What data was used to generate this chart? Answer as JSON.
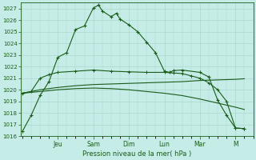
{
  "xlabel": "Pression niveau de la mer( hPa )",
  "bg_color": "#c5ece6",
  "grid_color": "#aad8cc",
  "line_color": "#1a5c1a",
  "ylim": [
    1016,
    1027.5
  ],
  "yticks": [
    1016,
    1017,
    1018,
    1019,
    1020,
    1021,
    1022,
    1023,
    1024,
    1025,
    1026,
    1027
  ],
  "day_labels": [
    "Jeu",
    "Sam",
    "Dim",
    "Lun",
    "Mar",
    "M"
  ],
  "day_positions": [
    2,
    4,
    6,
    8,
    10,
    12
  ],
  "xlim": [
    -0.1,
    13.0
  ],
  "line_main": {
    "x": [
      0,
      0.5,
      1,
      1.5,
      2,
      2.5,
      3,
      3.5,
      4,
      4.3,
      4.5,
      5,
      5.3,
      5.5,
      6,
      6.5,
      7,
      7.5,
      8,
      8.3,
      8.5,
      9,
      10,
      10.5,
      11,
      11.5,
      12,
      12.5
    ],
    "y": [
      1016.4,
      1017.8,
      1019.5,
      1020.7,
      1022.8,
      1023.2,
      1025.2,
      1025.5,
      1027.05,
      1027.3,
      1026.8,
      1026.3,
      1026.6,
      1026.1,
      1025.6,
      1025.0,
      1024.1,
      1023.2,
      1021.6,
      1021.5,
      1021.65,
      1021.7,
      1021.5,
      1021.1,
      1019.1,
      1017.8,
      1016.7,
      1016.65
    ]
  },
  "line_flat1": {
    "x": [
      0,
      1,
      2,
      3,
      4,
      5,
      6,
      7,
      8,
      9,
      10,
      11,
      12,
      12.5
    ],
    "y": [
      1019.7,
      1020.0,
      1020.2,
      1020.35,
      1020.45,
      1020.5,
      1020.55,
      1020.6,
      1020.65,
      1020.7,
      1020.8,
      1020.85,
      1020.9,
      1020.95
    ]
  },
  "line_flat2": {
    "x": [
      0,
      1,
      2,
      3,
      4,
      5,
      6,
      7,
      8,
      9,
      10,
      11,
      12,
      12.5
    ],
    "y": [
      1019.7,
      1019.85,
      1020.0,
      1020.1,
      1020.15,
      1020.1,
      1020.0,
      1019.85,
      1019.7,
      1019.5,
      1019.2,
      1018.85,
      1018.5,
      1018.3
    ]
  },
  "line_mid": {
    "x": [
      0,
      0.5,
      1,
      1.5,
      2,
      3,
      4,
      5,
      6,
      7,
      8,
      8.5,
      9,
      9.5,
      10,
      10.5,
      11,
      11.5,
      12,
      12.5
    ],
    "y": [
      1019.7,
      1019.85,
      1021.0,
      1021.3,
      1021.5,
      1021.6,
      1021.7,
      1021.6,
      1021.55,
      1021.5,
      1021.5,
      1021.45,
      1021.4,
      1021.2,
      1021.0,
      1020.6,
      1020.0,
      1019.0,
      1016.7,
      1016.65
    ]
  }
}
